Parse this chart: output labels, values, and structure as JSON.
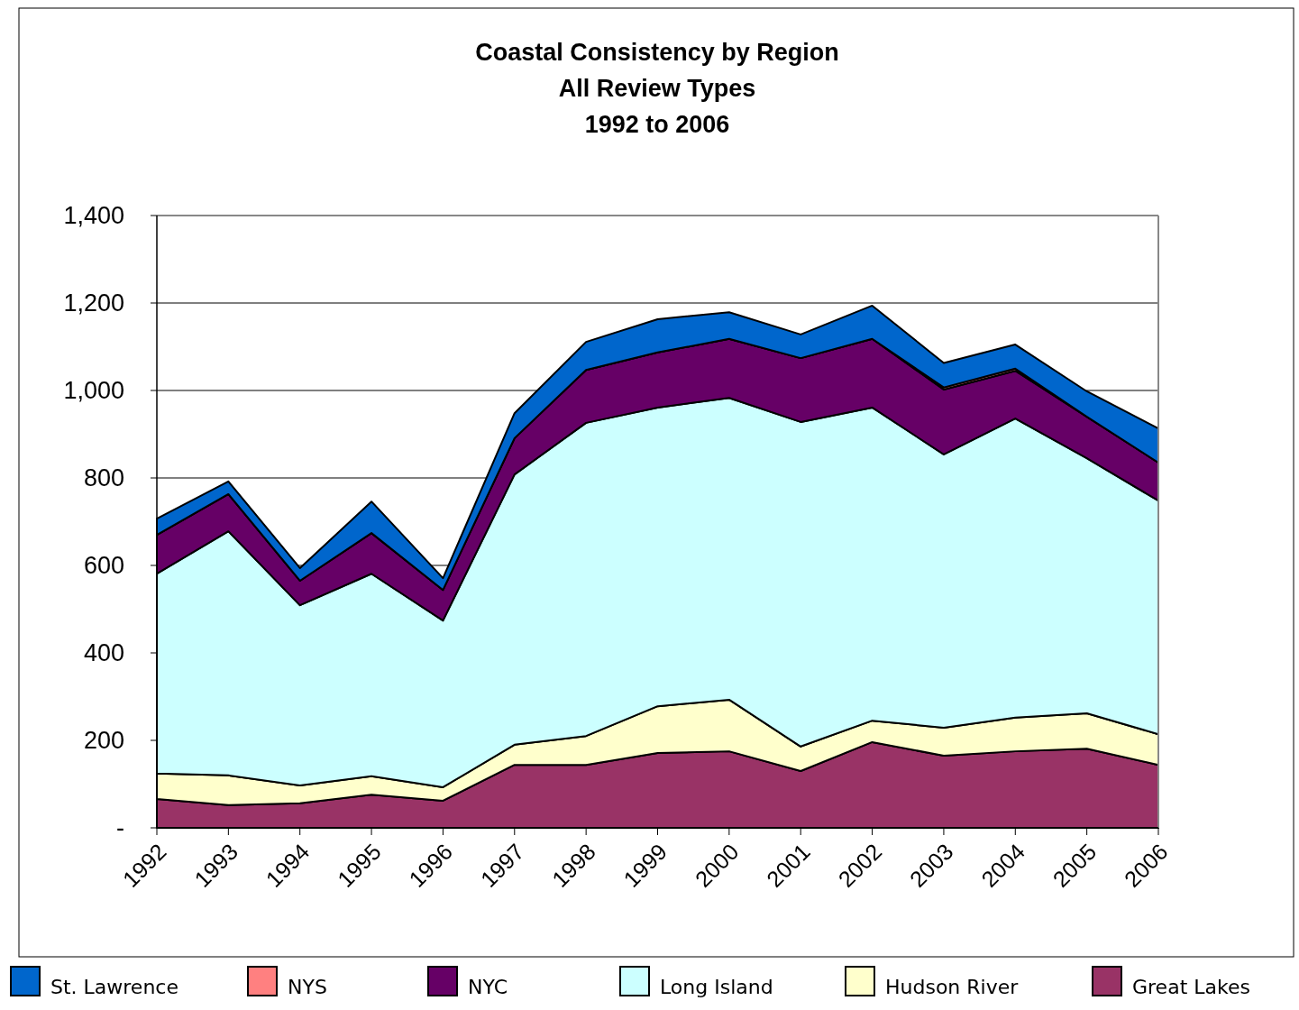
{
  "chart_data": {
    "type": "area",
    "stacked": true,
    "title": "Coastal Consistency by Region\nAll Review Types\n1992 to 2006",
    "categories": [
      "1992",
      "1993",
      "1994",
      "1995",
      "1996",
      "1997",
      "1998",
      "1999",
      "2000",
      "2001",
      "2002",
      "2003",
      "2004",
      "2005",
      "2006"
    ],
    "series": [
      {
        "name": "Great Lakes",
        "color": "#993366",
        "values": [
          66,
          52,
          56,
          76,
          62,
          144,
          144,
          171,
          175,
          130,
          196,
          165,
          175,
          181,
          144
        ]
      },
      {
        "name": "Hudson River",
        "color": "#ffffcc",
        "values": [
          58,
          68,
          41,
          42,
          31,
          46,
          66,
          107,
          118,
          56,
          49,
          64,
          77,
          81,
          70
        ]
      },
      {
        "name": "Long Island",
        "color": "#ccffff",
        "values": [
          457,
          558,
          412,
          463,
          381,
          618,
          716,
          683,
          690,
          742,
          716,
          625,
          684,
          583,
          534
        ]
      },
      {
        "name": "NYC",
        "color": "#660066",
        "values": [
          89,
          85,
          56,
          93,
          70,
          83,
          121,
          126,
          135,
          146,
          157,
          148,
          109,
          95,
          87
        ]
      },
      {
        "name": "NYS",
        "color": "#ff8080",
        "values": [
          0,
          0,
          0,
          0,
          0,
          0,
          0,
          0,
          0,
          0,
          0,
          5,
          5,
          0,
          0
        ]
      },
      {
        "name": "St. Lawrence",
        "color": "#0066cc",
        "values": [
          37,
          29,
          29,
          72,
          27,
          57,
          64,
          76,
          61,
          54,
          76,
          56,
          55,
          58,
          78
        ]
      }
    ],
    "ylim": [
      0,
      1400
    ],
    "yticks": [
      {
        "value": 0,
        "label": "-"
      },
      {
        "value": 200,
        "label": "200"
      },
      {
        "value": 400,
        "label": "400"
      },
      {
        "value": 600,
        "label": "600"
      },
      {
        "value": 800,
        "label": "800"
      },
      {
        "value": 1000,
        "label": "1,000"
      },
      {
        "value": 1200,
        "label": "1,200"
      },
      {
        "value": 1400,
        "label": "1,400"
      }
    ],
    "grid": "y",
    "legend": "bottom"
  }
}
